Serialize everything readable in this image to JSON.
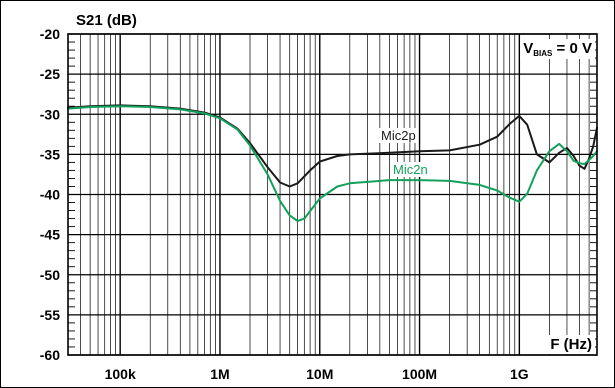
{
  "chart_data": {
    "type": "line",
    "title": "",
    "ylabel": "S21 (dB)",
    "xlabel": "F (Hz)",
    "annotation": {
      "main": "V",
      "sub": "BIAS",
      "rest": " = 0 V"
    },
    "x_scale": "log",
    "xlim": [
      30000,
      6000000000
    ],
    "ylim": [
      -60,
      -20
    ],
    "yticks": [
      -20,
      -25,
      -30,
      -35,
      -40,
      -45,
      -50,
      -55,
      -60
    ],
    "xticks": [
      {
        "value": 100000,
        "label": "100k"
      },
      {
        "value": 1000000,
        "label": "1M"
      },
      {
        "value": 10000000,
        "label": "10M"
      },
      {
        "value": 100000000,
        "label": "100M"
      },
      {
        "value": 1000000000,
        "label": "1G"
      }
    ],
    "grid": true,
    "series": [
      {
        "name": "Mic2p",
        "color": "#1a1a1a",
        "points": [
          [
            30000,
            -29.2
          ],
          [
            50000,
            -29.0
          ],
          [
            100000,
            -28.9
          ],
          [
            200000,
            -29.0
          ],
          [
            400000,
            -29.3
          ],
          [
            700000,
            -29.8
          ],
          [
            1000000,
            -30.4
          ],
          [
            1500000,
            -31.8
          ],
          [
            2000000,
            -33.6
          ],
          [
            3000000,
            -36.6
          ],
          [
            4000000,
            -38.5
          ],
          [
            5000000,
            -39.0
          ],
          [
            6000000,
            -38.6
          ],
          [
            8000000,
            -37.0
          ],
          [
            10000000,
            -35.9
          ],
          [
            15000000,
            -35.2
          ],
          [
            20000000,
            -35.0
          ],
          [
            50000000,
            -34.8
          ],
          [
            100000000,
            -34.6
          ],
          [
            200000000,
            -34.5
          ],
          [
            400000000,
            -33.8
          ],
          [
            600000000,
            -32.8
          ],
          [
            800000000,
            -31.2
          ],
          [
            1000000000,
            -30.2
          ],
          [
            1200000000,
            -31.3
          ],
          [
            1500000000,
            -35.0
          ],
          [
            2000000000,
            -36.0
          ],
          [
            2500000000,
            -34.8
          ],
          [
            3000000000,
            -34.2
          ],
          [
            3500000000,
            -35.2
          ],
          [
            4000000000,
            -36.4
          ],
          [
            4500000000,
            -36.8
          ],
          [
            5000000000,
            -35.5
          ],
          [
            5500000000,
            -34.0
          ],
          [
            6000000000,
            -31.7
          ]
        ]
      },
      {
        "name": "Mic2n",
        "color": "#13a05c",
        "points": [
          [
            30000,
            -29.3
          ],
          [
            50000,
            -29.1
          ],
          [
            100000,
            -29.0
          ],
          [
            200000,
            -29.1
          ],
          [
            400000,
            -29.4
          ],
          [
            700000,
            -29.9
          ],
          [
            1000000,
            -30.5
          ],
          [
            1500000,
            -31.9
          ],
          [
            2000000,
            -33.9
          ],
          [
            3000000,
            -37.5
          ],
          [
            4000000,
            -40.8
          ],
          [
            5000000,
            -42.6
          ],
          [
            6000000,
            -43.3
          ],
          [
            7000000,
            -43.0
          ],
          [
            10000000,
            -40.5
          ],
          [
            15000000,
            -39.0
          ],
          [
            20000000,
            -38.6
          ],
          [
            50000000,
            -38.2
          ],
          [
            100000000,
            -38.2
          ],
          [
            200000000,
            -38.3
          ],
          [
            400000000,
            -38.8
          ],
          [
            600000000,
            -39.5
          ],
          [
            800000000,
            -40.4
          ],
          [
            1000000000,
            -40.9
          ],
          [
            1200000000,
            -39.9
          ],
          [
            1500000000,
            -37.0
          ],
          [
            2000000000,
            -34.6
          ],
          [
            2500000000,
            -33.7
          ],
          [
            3000000000,
            -34.6
          ],
          [
            3500000000,
            -35.8
          ],
          [
            4000000000,
            -36.1
          ],
          [
            4500000000,
            -36.2
          ],
          [
            5000000000,
            -35.7
          ],
          [
            5500000000,
            -35.2
          ],
          [
            6000000000,
            -34.6
          ]
        ]
      }
    ]
  }
}
